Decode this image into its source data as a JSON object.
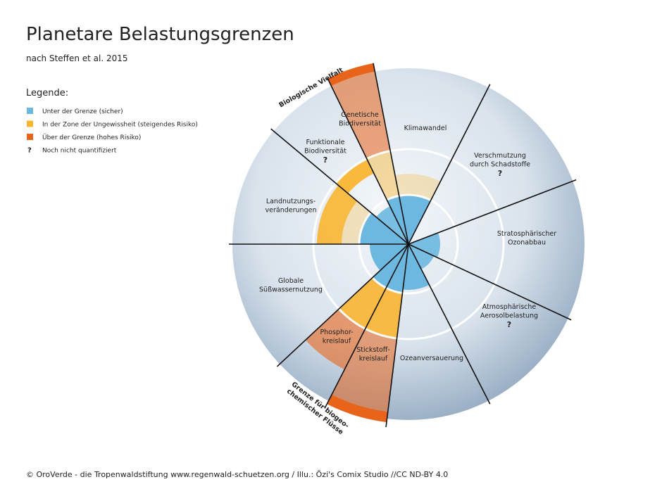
{
  "header": {
    "title": "Planetare Belastungsgrenzen",
    "subtitle": "nach Steffen et al. 2015"
  },
  "legend": {
    "heading": "Legende:",
    "items": [
      {
        "color": "#6cb8e0",
        "label": "Unter der Grenze (sicher)"
      },
      {
        "color": "#f9b531",
        "label": "In der Zone der Ungewissheit (steigendes Risiko)"
      },
      {
        "color": "#e8641b",
        "label": "Über der Grenze (hohes Risiko)"
      },
      {
        "symbol": "?",
        "label": "Noch nicht quantifiziert"
      }
    ]
  },
  "groups": [
    {
      "lines": [
        "Biologische Vielfalt"
      ]
    },
    {
      "lines": [
        "Grenze für biogeo-",
        "chemischer Flüsse"
      ]
    }
  ],
  "segments": [
    {
      "lines": [
        "Genetische",
        "Biodiversität"
      ]
    },
    {
      "lines": [
        "Klimawandel"
      ]
    },
    {
      "lines": [
        "Verschmutzung",
        "durch Schadstoffe"
      ],
      "question": "?"
    },
    {
      "lines": [
        "Stratosphärischer",
        "Ozonabbau"
      ]
    },
    {
      "lines": [
        "Atmosphärische",
        "Aerosolbelastung"
      ],
      "question": "?"
    },
    {
      "lines": [
        "Ozeanversauerung"
      ]
    },
    {
      "lines": [
        "Stickstoff-",
        "kreislauf"
      ]
    },
    {
      "lines": [
        "Phosphor-",
        "kreislauf"
      ]
    },
    {
      "lines": [
        "Globale",
        "Süßwassernutzung"
      ]
    },
    {
      "lines": [
        "Landnutzungs-",
        "veränderungen"
      ]
    },
    {
      "lines": [
        "Funktionale",
        "Biodiversität"
      ],
      "question": "?"
    }
  ],
  "footer": "© OroVerde - die Tropenwaldstiftung www.regenwald-schuetzen.org / Illu.: Özi's Comix Studio //CC ND-BY 4.0"
}
